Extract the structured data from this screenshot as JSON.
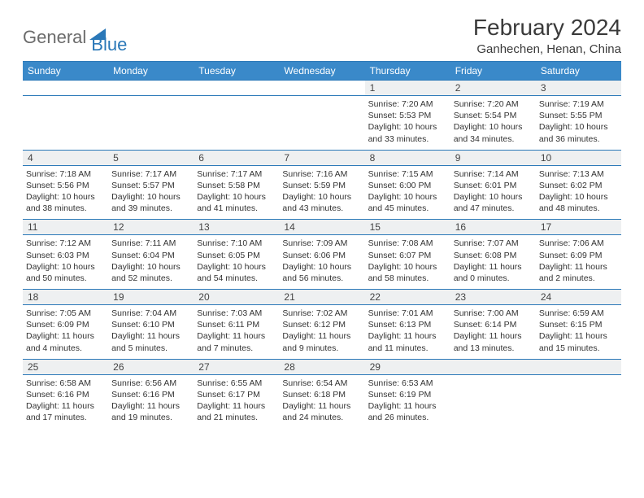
{
  "logo": {
    "word1": "General",
    "word2": "Blue"
  },
  "title": "February 2024",
  "location": "Ganhechen, Henan, China",
  "colors": {
    "header_bg": "#3a89c9",
    "rule": "#2a78b8",
    "daynum_bg": "#eef0f1",
    "logo_gray": "#6b6b6b",
    "logo_blue": "#2a78b8"
  },
  "weekdays": [
    "Sunday",
    "Monday",
    "Tuesday",
    "Wednesday",
    "Thursday",
    "Friday",
    "Saturday"
  ],
  "weeks": [
    [
      null,
      null,
      null,
      null,
      {
        "n": "1",
        "sunrise": "7:20 AM",
        "sunset": "5:53 PM",
        "dl": "10 hours and 33 minutes."
      },
      {
        "n": "2",
        "sunrise": "7:20 AM",
        "sunset": "5:54 PM",
        "dl": "10 hours and 34 minutes."
      },
      {
        "n": "3",
        "sunrise": "7:19 AM",
        "sunset": "5:55 PM",
        "dl": "10 hours and 36 minutes."
      }
    ],
    [
      {
        "n": "4",
        "sunrise": "7:18 AM",
        "sunset": "5:56 PM",
        "dl": "10 hours and 38 minutes."
      },
      {
        "n": "5",
        "sunrise": "7:17 AM",
        "sunset": "5:57 PM",
        "dl": "10 hours and 39 minutes."
      },
      {
        "n": "6",
        "sunrise": "7:17 AM",
        "sunset": "5:58 PM",
        "dl": "10 hours and 41 minutes."
      },
      {
        "n": "7",
        "sunrise": "7:16 AM",
        "sunset": "5:59 PM",
        "dl": "10 hours and 43 minutes."
      },
      {
        "n": "8",
        "sunrise": "7:15 AM",
        "sunset": "6:00 PM",
        "dl": "10 hours and 45 minutes."
      },
      {
        "n": "9",
        "sunrise": "7:14 AM",
        "sunset": "6:01 PM",
        "dl": "10 hours and 47 minutes."
      },
      {
        "n": "10",
        "sunrise": "7:13 AM",
        "sunset": "6:02 PM",
        "dl": "10 hours and 48 minutes."
      }
    ],
    [
      {
        "n": "11",
        "sunrise": "7:12 AM",
        "sunset": "6:03 PM",
        "dl": "10 hours and 50 minutes."
      },
      {
        "n": "12",
        "sunrise": "7:11 AM",
        "sunset": "6:04 PM",
        "dl": "10 hours and 52 minutes."
      },
      {
        "n": "13",
        "sunrise": "7:10 AM",
        "sunset": "6:05 PM",
        "dl": "10 hours and 54 minutes."
      },
      {
        "n": "14",
        "sunrise": "7:09 AM",
        "sunset": "6:06 PM",
        "dl": "10 hours and 56 minutes."
      },
      {
        "n": "15",
        "sunrise": "7:08 AM",
        "sunset": "6:07 PM",
        "dl": "10 hours and 58 minutes."
      },
      {
        "n": "16",
        "sunrise": "7:07 AM",
        "sunset": "6:08 PM",
        "dl": "11 hours and 0 minutes."
      },
      {
        "n": "17",
        "sunrise": "7:06 AM",
        "sunset": "6:09 PM",
        "dl": "11 hours and 2 minutes."
      }
    ],
    [
      {
        "n": "18",
        "sunrise": "7:05 AM",
        "sunset": "6:09 PM",
        "dl": "11 hours and 4 minutes."
      },
      {
        "n": "19",
        "sunrise": "7:04 AM",
        "sunset": "6:10 PM",
        "dl": "11 hours and 5 minutes."
      },
      {
        "n": "20",
        "sunrise": "7:03 AM",
        "sunset": "6:11 PM",
        "dl": "11 hours and 7 minutes."
      },
      {
        "n": "21",
        "sunrise": "7:02 AM",
        "sunset": "6:12 PM",
        "dl": "11 hours and 9 minutes."
      },
      {
        "n": "22",
        "sunrise": "7:01 AM",
        "sunset": "6:13 PM",
        "dl": "11 hours and 11 minutes."
      },
      {
        "n": "23",
        "sunrise": "7:00 AM",
        "sunset": "6:14 PM",
        "dl": "11 hours and 13 minutes."
      },
      {
        "n": "24",
        "sunrise": "6:59 AM",
        "sunset": "6:15 PM",
        "dl": "11 hours and 15 minutes."
      }
    ],
    [
      {
        "n": "25",
        "sunrise": "6:58 AM",
        "sunset": "6:16 PM",
        "dl": "11 hours and 17 minutes."
      },
      {
        "n": "26",
        "sunrise": "6:56 AM",
        "sunset": "6:16 PM",
        "dl": "11 hours and 19 minutes."
      },
      {
        "n": "27",
        "sunrise": "6:55 AM",
        "sunset": "6:17 PM",
        "dl": "11 hours and 21 minutes."
      },
      {
        "n": "28",
        "sunrise": "6:54 AM",
        "sunset": "6:18 PM",
        "dl": "11 hours and 24 minutes."
      },
      {
        "n": "29",
        "sunrise": "6:53 AM",
        "sunset": "6:19 PM",
        "dl": "11 hours and 26 minutes."
      },
      null,
      null
    ]
  ],
  "labels": {
    "sunrise": "Sunrise:",
    "sunset": "Sunset:",
    "daylight": "Daylight:"
  }
}
